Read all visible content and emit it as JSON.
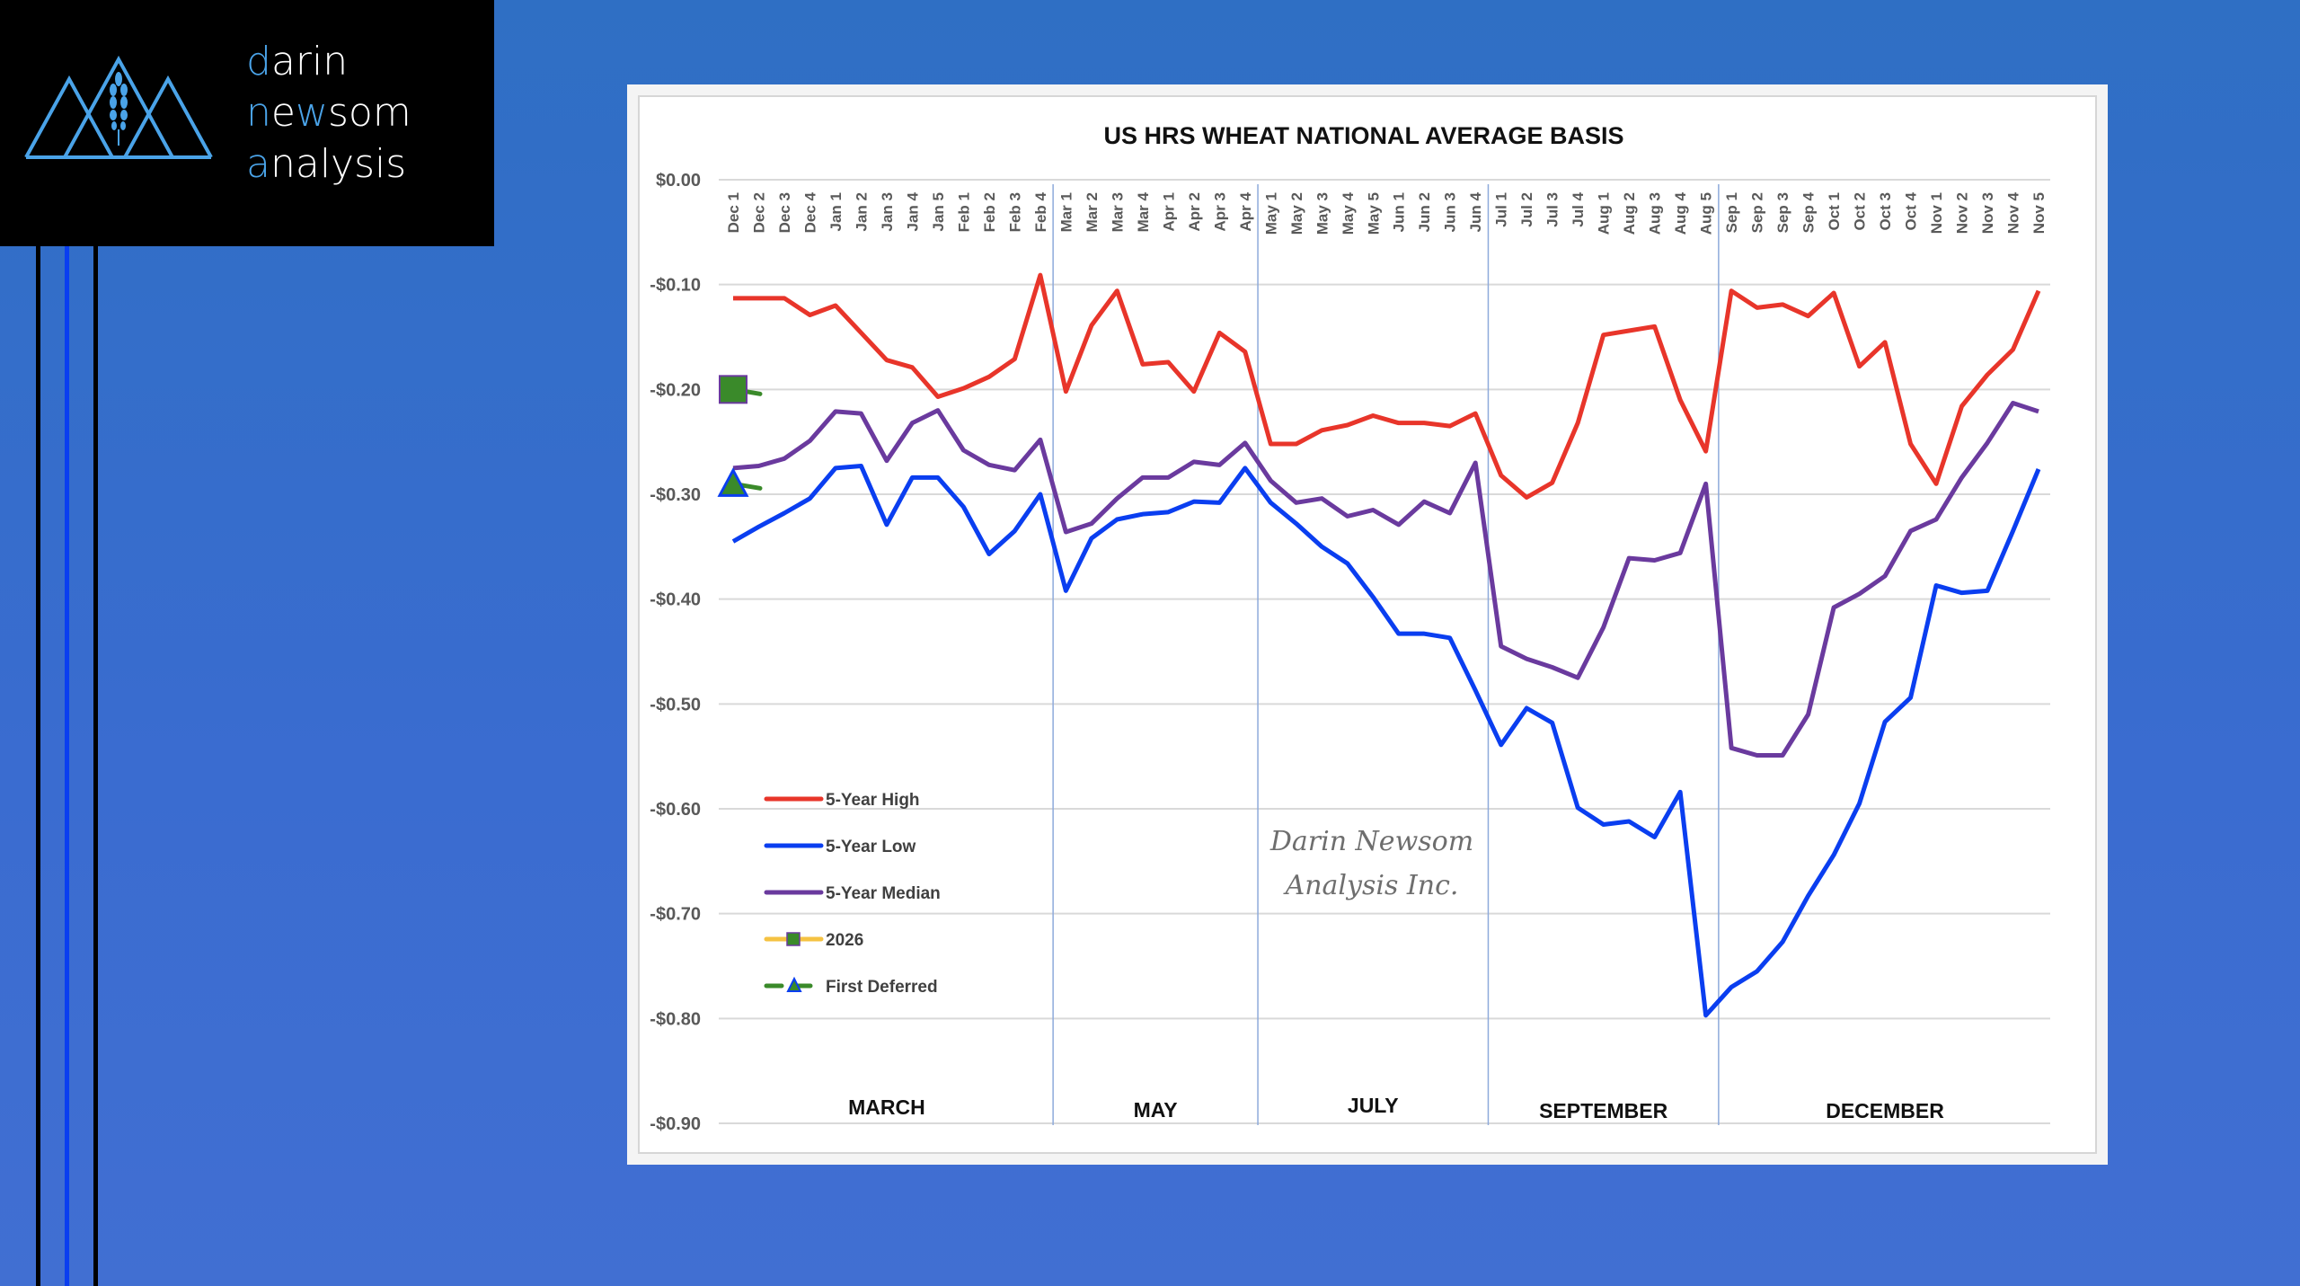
{
  "brand": {
    "line1_first": "d",
    "line1_rest": "arin",
    "line2_first": "n",
    "line2_mid": "e",
    "line2_hl": "w",
    "line2_rest": "som",
    "line3_first": "a",
    "line3_rest": "nalysis",
    "accent_color": "#4aa3e8",
    "logo_icon": "mountains-wheat-icon"
  },
  "chart_data": {
    "type": "line",
    "title": "US HRS WHEAT NATIONAL AVERAGE BASIS",
    "xlabel": "",
    "ylabel": "",
    "ylim": [
      -0.9,
      0.0
    ],
    "yticks": [
      0.0,
      -0.1,
      -0.2,
      -0.3,
      -0.4,
      -0.5,
      -0.6,
      -0.7,
      -0.8,
      -0.9
    ],
    "ytick_labels": [
      "$0.00",
      "-$0.10",
      "-$0.20",
      "-$0.30",
      "-$0.40",
      "-$0.50",
      "-$0.60",
      "-$0.70",
      "-$0.80",
      "-$0.90"
    ],
    "grid": true,
    "categories": [
      "Dec 1",
      "Dec 2",
      "Dec 3",
      "Dec 4",
      "Jan 1",
      "Jan 2",
      "Jan 3",
      "Jan 4",
      "Jan 5",
      "Feb 1",
      "Feb 2",
      "Feb 3",
      "Feb 4",
      "Mar 1",
      "Mar 2",
      "Mar 3",
      "Mar 4",
      "Apr 1",
      "Apr 2",
      "Apr 3",
      "Apr 4",
      "May 1",
      "May 2",
      "May 3",
      "May 4",
      "May 5",
      "Jun 1",
      "Jun 2",
      "Jun 3",
      "Jun 4",
      "Jul 1",
      "Jul 2",
      "Jul 3",
      "Jul 4",
      "Aug 1",
      "Aug 2",
      "Aug 3",
      "Aug 4",
      "Aug 5",
      "Sep 1",
      "Sep 2",
      "Sep 3",
      "Sep 4",
      "Oct 1",
      "Oct 2",
      "Oct 3",
      "Oct 4",
      "Nov 1",
      "Nov 2",
      "Nov 3",
      "Nov 4",
      "Nov 5"
    ],
    "contract_periods": [
      {
        "label": "MARCH",
        "start": "Dec 1",
        "end": "Feb 4"
      },
      {
        "label": "MAY",
        "start": "Mar 1",
        "end": "Apr 4"
      },
      {
        "label": "JULY",
        "start": "May 1",
        "end": "Jun 4"
      },
      {
        "label": "SEPTEMBER",
        "start": "Jul 1",
        "end": "Aug 5"
      },
      {
        "label": "DECEMBER",
        "start": "Sep 1",
        "end": "Nov 5"
      }
    ],
    "series": [
      {
        "name": "5-Year High",
        "color": "#e8352a",
        "style": "line",
        "values": [
          -0.113,
          -0.113,
          -0.113,
          -0.129,
          -0.12,
          -0.146,
          -0.172,
          -0.179,
          -0.207,
          -0.199,
          -0.188,
          -0.171,
          -0.091,
          -0.202,
          -0.139,
          -0.106,
          -0.176,
          -0.174,
          -0.202,
          -0.146,
          -0.164,
          -0.252,
          -0.252,
          -0.239,
          -0.234,
          -0.225,
          -0.232,
          -0.232,
          -0.235,
          -0.223,
          -0.282,
          -0.303,
          -0.289,
          -0.232,
          -0.148,
          -0.144,
          -0.14,
          -0.21,
          -0.259,
          -0.106,
          -0.122,
          -0.119,
          -0.13,
          -0.108,
          -0.178,
          -0.155,
          -0.252,
          -0.29,
          -0.216,
          -0.186,
          -0.162,
          -0.106
        ]
      },
      {
        "name": "5-Year Low",
        "color": "#0a3ef0",
        "style": "line",
        "values": [
          -0.345,
          -0.331,
          -0.318,
          -0.304,
          -0.275,
          -0.273,
          -0.329,
          -0.284,
          -0.284,
          -0.312,
          -0.357,
          -0.335,
          -0.3,
          -0.392,
          -0.342,
          -0.324,
          -0.319,
          -0.317,
          -0.307,
          -0.308,
          -0.275,
          -0.308,
          -0.328,
          -0.35,
          -0.366,
          -0.398,
          -0.433,
          -0.433,
          -0.437,
          -0.487,
          -0.539,
          -0.504,
          -0.518,
          -0.599,
          -0.615,
          -0.612,
          -0.627,
          -0.584,
          -0.797,
          -0.77,
          -0.755,
          -0.727,
          -0.683,
          -0.644,
          -0.595,
          -0.517,
          -0.494,
          -0.387,
          -0.394,
          -0.392,
          -0.335,
          -0.276
        ]
      },
      {
        "name": "5-Year Median",
        "color": "#6a3a9e",
        "style": "line",
        "values": [
          -0.275,
          -0.273,
          -0.266,
          -0.249,
          -0.221,
          -0.223,
          -0.268,
          -0.232,
          -0.22,
          -0.258,
          -0.272,
          -0.277,
          -0.248,
          -0.336,
          -0.328,
          -0.304,
          -0.284,
          -0.284,
          -0.269,
          -0.272,
          -0.251,
          -0.287,
          -0.308,
          -0.304,
          -0.321,
          -0.315,
          -0.329,
          -0.307,
          -0.318,
          -0.27,
          -0.445,
          -0.457,
          -0.465,
          -0.475,
          -0.427,
          -0.361,
          -0.363,
          -0.356,
          -0.29,
          -0.542,
          -0.549,
          -0.549,
          -0.51,
          -0.408,
          -0.395,
          -0.378,
          -0.335,
          -0.324,
          -0.284,
          -0.251,
          -0.213,
          -0.221
        ]
      },
      {
        "name": "2026",
        "color": "#f5c242",
        "marker": "square",
        "marker_fill": "#3a8a2a",
        "marker_edge": "#6a3a9e",
        "values": [
          -0.2
        ]
      },
      {
        "name": "First Deferred",
        "color": "#3a8a2a",
        "style": "dashed",
        "marker": "triangle",
        "marker_fill": "#3a8a2a",
        "marker_edge": "#0a3ef0",
        "values": [
          -0.29
        ]
      }
    ],
    "legend": {
      "placement": "bottom-left"
    },
    "watermark": [
      "Darin Newsom",
      "Analysis Inc."
    ]
  }
}
